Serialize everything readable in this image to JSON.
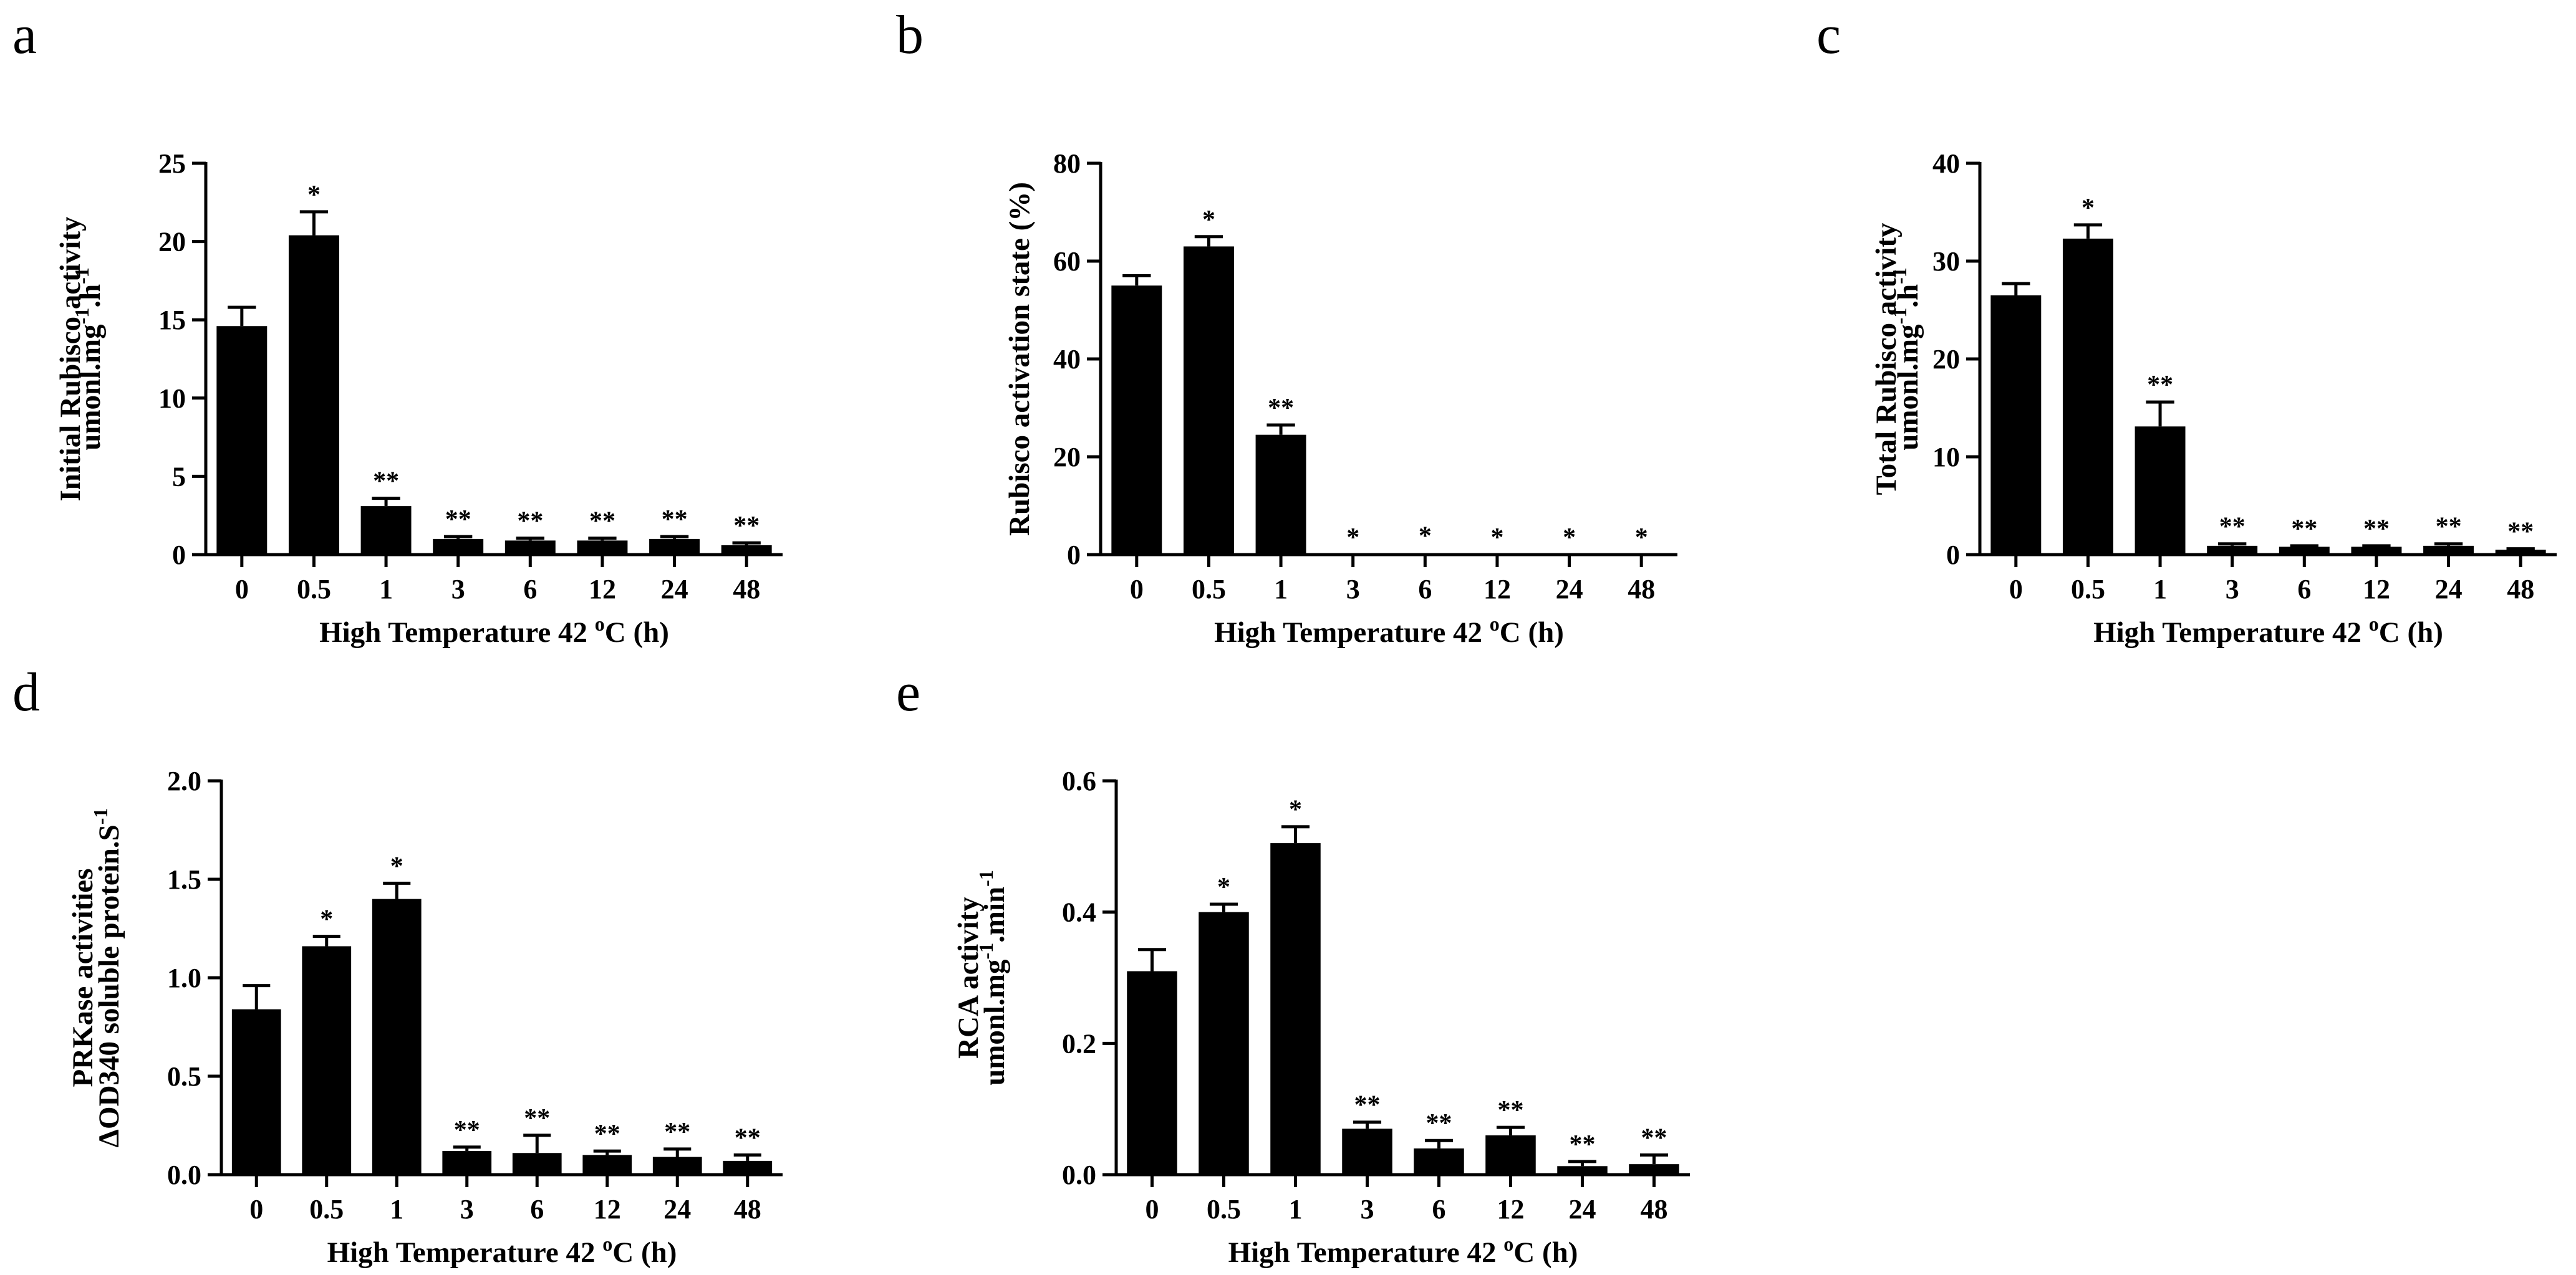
{
  "chart_data": [
    {
      "panel": "a",
      "type": "bar",
      "categories": [
        "0",
        "0.5",
        "1",
        "3",
        "6",
        "12",
        "24",
        "48"
      ],
      "values": [
        14.6,
        20.4,
        3.1,
        1.0,
        0.9,
        0.9,
        1.0,
        0.6
      ],
      "errors": [
        1.2,
        1.5,
        0.5,
        0.15,
        0.15,
        0.15,
        0.15,
        0.15
      ],
      "significance": [
        "",
        "*",
        "**",
        "**",
        "**",
        "**",
        "**",
        "**"
      ],
      "xlabel": "High Temperature 42 °C (h)",
      "xlabel_parts": {
        "pre": "High Temperature 42 ",
        "sup": "o",
        "post": "C (h)"
      },
      "ylabel_line1": "Initial Rubisco activity",
      "ylabel_line2_parts": {
        "pre": "umonl.mg",
        "sup1": "-1",
        "mid": ".h",
        "sup2": "-1"
      },
      "ylim": [
        0,
        25
      ],
      "yticks": [
        0,
        5,
        10,
        15,
        20,
        25
      ]
    },
    {
      "panel": "b",
      "type": "bar",
      "categories": [
        "0",
        "0.5",
        "1",
        "3",
        "6",
        "12",
        "24",
        "48"
      ],
      "values": [
        55,
        63,
        24.5,
        0,
        0.3,
        0,
        0,
        0
      ],
      "errors": [
        2,
        2,
        2,
        0,
        0,
        0,
        0,
        0
      ],
      "significance": [
        "",
        "*",
        "**",
        "*",
        "*",
        "*",
        "*",
        "*"
      ],
      "xlabel": "High Temperature 42 °C (h)",
      "xlabel_parts": {
        "pre": "High Temperature 42 ",
        "sup": "o",
        "post": "C (h)"
      },
      "ylabel_line1": "Rubisco activation state (%)",
      "ylim": [
        0,
        80
      ],
      "yticks": [
        0,
        20,
        40,
        60,
        80
      ]
    },
    {
      "panel": "c",
      "type": "bar",
      "categories": [
        "0",
        "0.5",
        "1",
        "3",
        "6",
        "12",
        "24",
        "48"
      ],
      "values": [
        26.5,
        32.3,
        13.1,
        0.9,
        0.8,
        0.8,
        0.9,
        0.5
      ],
      "errors": [
        1.2,
        1.4,
        2.5,
        0.2,
        0.1,
        0.1,
        0.2,
        0.1
      ],
      "significance": [
        "",
        "*",
        "**",
        "**",
        "**",
        "**",
        "**",
        "**"
      ],
      "xlabel": "High Temperature 42 °C (h)",
      "xlabel_parts": {
        "pre": "High Temperature 42 ",
        "sup": "o",
        "post": "C (h)"
      },
      "ylabel_line1": "Total Rubisco activity",
      "ylabel_line2_parts": {
        "pre": "umonl.mg",
        "sup1": "-1",
        "mid": ".h",
        "sup2": "-1"
      },
      "ylim": [
        0,
        40
      ],
      "yticks": [
        0,
        10,
        20,
        30,
        40
      ]
    },
    {
      "panel": "d",
      "type": "bar",
      "categories": [
        "0",
        "0.5",
        "1",
        "3",
        "6",
        "12",
        "24",
        "48"
      ],
      "values": [
        0.84,
        1.16,
        1.4,
        0.12,
        0.11,
        0.1,
        0.09,
        0.07
      ],
      "errors": [
        0.12,
        0.05,
        0.08,
        0.02,
        0.09,
        0.02,
        0.04,
        0.03
      ],
      "significance": [
        "",
        "*",
        "*",
        "**",
        "**",
        "**",
        "**",
        "**"
      ],
      "xlabel": "High Temperature 42 °C (h)",
      "xlabel_parts": {
        "pre": "High Temperature 42 ",
        "sup": "o",
        "post": "C (h)"
      },
      "ylabel_line1": "PRKase activities",
      "ylabel_line2_parts": {
        "pre": "ΔOD340 soluble protein.S",
        "sup1": "-1",
        "mid": "",
        "sup2": ""
      },
      "ylim": [
        0,
        2.0
      ],
      "yticks": [
        0.0,
        0.5,
        1.0,
        1.5,
        2.0
      ],
      "ytick_labels": [
        "0.0",
        "0.5",
        "1.0",
        "1.5",
        "2.0"
      ]
    },
    {
      "panel": "e",
      "type": "bar",
      "categories": [
        "0",
        "0.5",
        "1",
        "3",
        "6",
        "12",
        "24",
        "48"
      ],
      "values": [
        0.31,
        0.4,
        0.505,
        0.07,
        0.04,
        0.06,
        0.013,
        0.016
      ],
      "errors": [
        0.033,
        0.012,
        0.025,
        0.01,
        0.012,
        0.012,
        0.007,
        0.014
      ],
      "significance": [
        "",
        "*",
        "*",
        "**",
        "**",
        "**",
        "**",
        "**"
      ],
      "xlabel": "High Temperature 42 °C (h)",
      "xlabel_parts": {
        "pre": "High Temperature 42 ",
        "sup": "o",
        "post": "C (h)"
      },
      "ylabel_line1": "RCA activity",
      "ylabel_line2_parts": {
        "pre": "umonl.mg",
        "sup1": "-1",
        "mid": ".min",
        "sup2": "-1"
      },
      "ylim": [
        0,
        0.6
      ],
      "yticks": [
        0.0,
        0.2,
        0.4,
        0.6
      ],
      "ytick_labels": [
        "0.0",
        "0.2",
        "0.4",
        "0.6"
      ]
    }
  ],
  "colors": {
    "bar": "#000000",
    "axis": "#000000",
    "background": "#ffffff"
  }
}
